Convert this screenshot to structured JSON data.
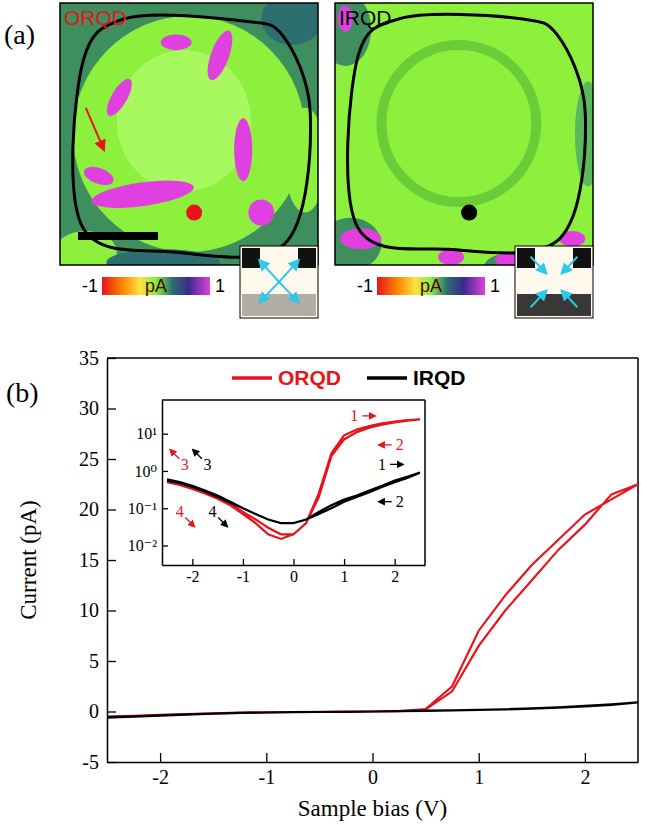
{
  "panel_labels": [
    "(a)",
    "(b)"
  ],
  "maps": [
    {
      "label": "ORQD",
      "colorbar": {
        "lim": [
          -1,
          1
        ],
        "ticks": [
          -1,
          1
        ],
        "unit": "pA"
      }
    },
    {
      "label": "IRQD",
      "colorbar": {
        "lim": [
          -1,
          1
        ],
        "ticks": [
          -1,
          1
        ],
        "unit": "pA"
      }
    }
  ],
  "chart_data": [
    {
      "type": "line",
      "x_label": "Sample bias (V)",
      "y_label": "Current (pA)",
      "x": [
        -2.5,
        -2.25,
        -2,
        -1.75,
        -1.5,
        -1.25,
        -1,
        -0.75,
        -0.5,
        -0.25,
        0,
        0.25,
        0.5,
        0.75,
        1,
        1.25,
        1.5,
        1.75,
        2,
        2.25,
        2.5,
        2.25,
        2,
        1.75,
        1.5,
        1.25,
        1,
        0.75,
        0.5,
        0.25,
        0,
        -0.25,
        -0.5,
        -0.75,
        -1,
        -1.25,
        -1.5,
        -1.75,
        -2,
        -2.25,
        -2.5
      ],
      "series": [
        {
          "name": "ORQD",
          "color": "#e8141c",
          "values": [
            -0.55,
            -0.45,
            -0.35,
            -0.27,
            -0.2,
            -0.13,
            -0.08,
            -0.05,
            -0.03,
            -0.02,
            0,
            0.04,
            0.25,
            2.5,
            8,
            11.5,
            14.5,
            17,
            19.5,
            21,
            22.5,
            21.5,
            18.5,
            16,
            13,
            10,
            6.5,
            2,
            0.2,
            0.03,
            0,
            -0.02,
            -0.03,
            -0.05,
            -0.08,
            -0.12,
            -0.18,
            -0.25,
            -0.33,
            -0.42,
            -0.5
          ]
        },
        {
          "name": "IRQD",
          "color": "#000000",
          "values": [
            -0.6,
            -0.5,
            -0.4,
            -0.3,
            -0.22,
            -0.15,
            -0.1,
            -0.07,
            -0.05,
            -0.03,
            0,
            0.05,
            0.08,
            0.12,
            0.17,
            0.22,
            0.3,
            0.4,
            0.55,
            0.7,
            0.9,
            0.65,
            0.5,
            0.37,
            0.27,
            0.2,
            0.15,
            0.1,
            0.07,
            0.04,
            0,
            -0.03,
            -0.05,
            -0.07,
            -0.1,
            -0.14,
            -0.2,
            -0.28,
            -0.37,
            -0.47,
            -0.55
          ]
        }
      ],
      "xlim": [
        -2.5,
        2.5
      ],
      "xticks": [
        -2,
        -1,
        0,
        1,
        2
      ],
      "ylim": [
        -5,
        35
      ],
      "yticks": [
        -5,
        0,
        5,
        10,
        15,
        20,
        25,
        30,
        35
      ],
      "legend": "top"
    },
    {
      "type": "line",
      "log": "y",
      "x": [
        -2.5,
        -2.25,
        -2,
        -1.75,
        -1.5,
        -1.25,
        -1,
        -0.75,
        -0.5,
        -0.25,
        0,
        0.25,
        0.5,
        0.75,
        1,
        1.25,
        1.5,
        1.75,
        2,
        2.25,
        2.5,
        2.25,
        2,
        1.75,
        1.5,
        1.25,
        1,
        0.75,
        0.5,
        0.25,
        0,
        -0.25,
        -0.5,
        -0.75,
        -1,
        -1.25,
        -1.5,
        -1.75,
        -2,
        -2.25,
        -2.5
      ],
      "series": [
        {
          "color": "#e8141c",
          "values": [
            0.55,
            0.45,
            0.35,
            0.27,
            0.2,
            0.13,
            0.08,
            0.05,
            0.03,
            0.02,
            0.02,
            0.04,
            0.25,
            3,
            9,
            13,
            16,
            19,
            21,
            23,
            24,
            22.5,
            20,
            17.5,
            14.5,
            11,
            7,
            2.5,
            0.2,
            0.04,
            0.02,
            0.015,
            0.02,
            0.04,
            0.07,
            0.12,
            0.18,
            0.25,
            0.33,
            0.42,
            0.5
          ]
        },
        {
          "color": "#000000",
          "values": [
            0.6,
            0.5,
            0.4,
            0.3,
            0.22,
            0.15,
            0.1,
            0.07,
            0.05,
            0.04,
            0.04,
            0.05,
            0.08,
            0.12,
            0.17,
            0.22,
            0.3,
            0.4,
            0.55,
            0.7,
            0.9,
            0.65,
            0.5,
            0.37,
            0.27,
            0.2,
            0.15,
            0.1,
            0.07,
            0.05,
            0.04,
            0.04,
            0.05,
            0.07,
            0.1,
            0.14,
            0.2,
            0.28,
            0.37,
            0.47,
            0.55
          ]
        }
      ],
      "xlim": [
        -2.6,
        2.6
      ],
      "xticks": [
        -2,
        -1,
        0,
        1,
        2
      ],
      "ylim": [
        0.003,
        80
      ],
      "yticks": [
        {
          "value": 0.01,
          "label": "10⁻²"
        },
        {
          "value": 0.1,
          "label": "10⁻¹"
        },
        {
          "value": 1,
          "label": "10⁰"
        },
        {
          "value": 10,
          "label": "10¹"
        }
      ],
      "annotations": [
        {
          "text": "1",
          "x": 1.2,
          "y": 30,
          "color": "#e8141c",
          "arrow": "right"
        },
        {
          "text": "2",
          "x": 2.1,
          "y": 5,
          "color": "#e8141c",
          "arrow": "left"
        },
        {
          "text": "1",
          "x": 1.75,
          "y": 1.5,
          "color": "#000000",
          "arrow": "right"
        },
        {
          "text": "2",
          "x": 2.1,
          "y": 0.15,
          "color": "#000000",
          "arrow": "left"
        },
        {
          "text": "3",
          "x": -2.15,
          "y": 1.5,
          "color": "#e8141c",
          "arrow": "up-left"
        },
        {
          "text": "3",
          "x": -1.7,
          "y": 1.5,
          "color": "#000000",
          "arrow": "up-left"
        },
        {
          "text": "4",
          "x": -2.25,
          "y": 0.08,
          "color": "#e8141c",
          "arrow": "down-right"
        },
        {
          "text": "4",
          "x": -1.6,
          "y": 0.08,
          "color": "#000000",
          "arrow": "down-right"
        }
      ]
    }
  ]
}
